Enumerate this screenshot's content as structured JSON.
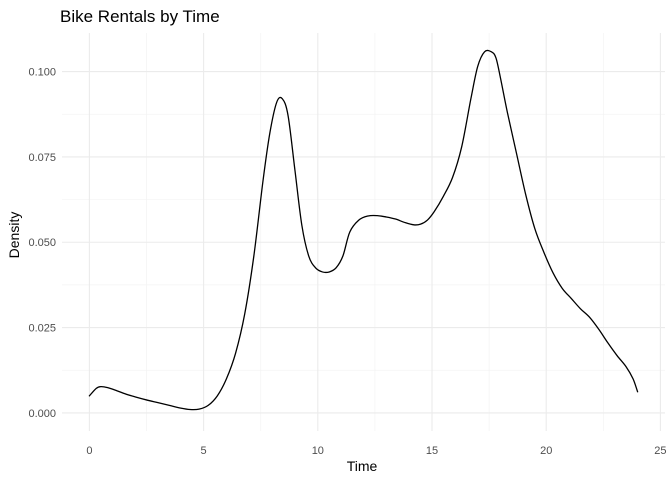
{
  "chart_data": {
    "type": "line",
    "title": "Bike Rentals by Time",
    "xlabel": "Time",
    "ylabel": "Density",
    "xlim": [
      -1.2,
      25.2
    ],
    "ylim": [
      -0.0053,
      0.1113
    ],
    "grid": true,
    "legend": "none",
    "x_ticks": [
      0,
      5,
      10,
      15,
      20,
      25
    ],
    "x_tick_labels": [
      "0",
      "5",
      "10",
      "15",
      "20",
      "25"
    ],
    "y_ticks": [
      0.0,
      0.025,
      0.05,
      0.075,
      0.1
    ],
    "y_tick_labels": [
      "0.000",
      "0.025",
      "0.050",
      "0.075",
      "0.100"
    ],
    "line_color": "#000000",
    "series": [
      {
        "x": [
          0,
          0.3,
          0.5,
          0.8,
          1.2,
          1.6,
          2,
          2.5,
          3,
          3.5,
          4,
          4.4,
          4.8,
          5.2,
          5.6,
          6,
          6.4,
          6.8,
          7.2,
          7.6,
          7.9,
          8.2,
          8.45,
          8.7,
          9,
          9.3,
          9.6,
          9.9,
          10.2,
          10.5,
          10.8,
          11.1,
          11.4,
          11.8,
          12.2,
          12.6,
          13,
          13.4,
          13.8,
          14.2,
          14.5,
          14.8,
          15.1,
          15.5,
          15.9,
          16.3,
          16.7,
          17,
          17.3,
          17.6,
          17.8,
          18,
          18.3,
          18.7,
          19.1,
          19.5,
          19.9,
          20.3,
          20.7,
          21.1,
          21.5,
          21.9,
          22.3,
          22.7,
          23.1,
          23.5,
          23.8,
          24
        ],
        "y": [
          0.005,
          0.0072,
          0.0077,
          0.0074,
          0.0065,
          0.0055,
          0.0047,
          0.0038,
          0.003,
          0.0022,
          0.0014,
          0.001,
          0.0011,
          0.0022,
          0.005,
          0.01,
          0.0175,
          0.029,
          0.046,
          0.068,
          0.082,
          0.091,
          0.092,
          0.087,
          0.071,
          0.055,
          0.046,
          0.0425,
          0.0413,
          0.0413,
          0.0425,
          0.046,
          0.053,
          0.0565,
          0.0577,
          0.0578,
          0.0574,
          0.0568,
          0.0558,
          0.0551,
          0.0553,
          0.0565,
          0.059,
          0.0635,
          0.069,
          0.078,
          0.092,
          0.1015,
          0.1058,
          0.1058,
          0.104,
          0.098,
          0.088,
          0.076,
          0.064,
          0.054,
          0.047,
          0.041,
          0.0365,
          0.0335,
          0.0305,
          0.028,
          0.0245,
          0.0205,
          0.0168,
          0.0135,
          0.01,
          0.0062
        ]
      }
    ]
  }
}
